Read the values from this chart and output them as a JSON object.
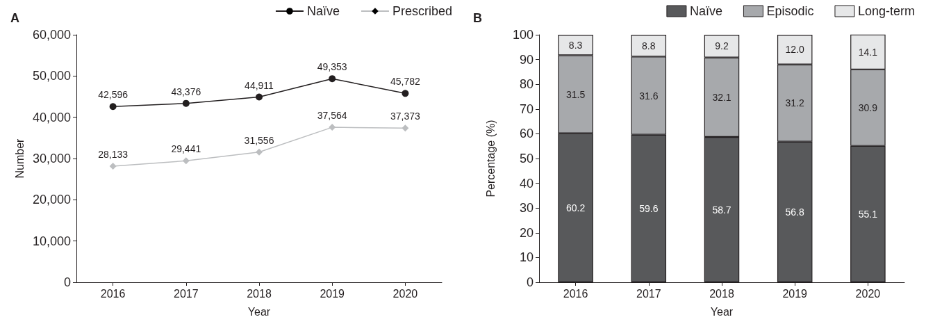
{
  "chart_data": [
    {
      "type": "line",
      "title": "A",
      "xlabel": "Year",
      "ylabel": "Number",
      "categories": [
        "2016",
        "2017",
        "2018",
        "2019",
        "2020"
      ],
      "series": [
        {
          "name": "Naïve",
          "color": "#231f20",
          "marker": "circle",
          "values": [
            42596,
            43376,
            44911,
            49353,
            45782
          ],
          "value_labels": [
            "42,596",
            "43,376",
            "44,911",
            "49,353",
            "45,782"
          ]
        },
        {
          "name": "Prescribed",
          "color": "#bcbec0",
          "marker": "diamond",
          "values": [
            28133,
            29441,
            31556,
            37564,
            37373
          ],
          "value_labels": [
            "28,133",
            "29,441",
            "31,556",
            "37,564",
            "37,373"
          ]
        }
      ],
      "ylim": [
        0,
        60000
      ],
      "yticks": [
        0,
        {
          "value": 10000,
          "label": "10,000"
        },
        {
          "value": 20000,
          "label": "20,000"
        },
        {
          "value": 30000,
          "label": "30,000"
        },
        {
          "value": 40000,
          "label": "40,000"
        },
        {
          "value": 50000,
          "label": "50,000"
        },
        {
          "value": 60000,
          "label": "60,000"
        }
      ],
      "grid": false,
      "legend": "top right"
    },
    {
      "type": "bar",
      "title": "B",
      "xlabel": "Year",
      "ylabel": "Percentage (%)",
      "categories": [
        "2016",
        "2017",
        "2018",
        "2019",
        "2020"
      ],
      "stacked": true,
      "data_labels": true,
      "series": [
        {
          "name": "Naïve",
          "color": "#58595b",
          "values": [
            60.2,
            59.6,
            58.7,
            56.8,
            55.1
          ]
        },
        {
          "name": "Episodic",
          "color": "#a7a9ac",
          "values": [
            31.5,
            31.6,
            32.1,
            31.2,
            30.9
          ]
        },
        {
          "name": "Long-term",
          "color": "#e6e7e8",
          "values": [
            8.3,
            8.8,
            9.2,
            12.0,
            14.1
          ],
          "value_labels": [
            "8.3",
            "8.8",
            "9.2",
            "12.0",
            "14.1"
          ]
        }
      ],
      "ylim": [
        0,
        100
      ],
      "yticks": [
        0,
        10,
        20,
        30,
        40,
        50,
        60,
        70,
        80,
        90,
        100
      ],
      "grid": false,
      "legend": "top right"
    }
  ]
}
